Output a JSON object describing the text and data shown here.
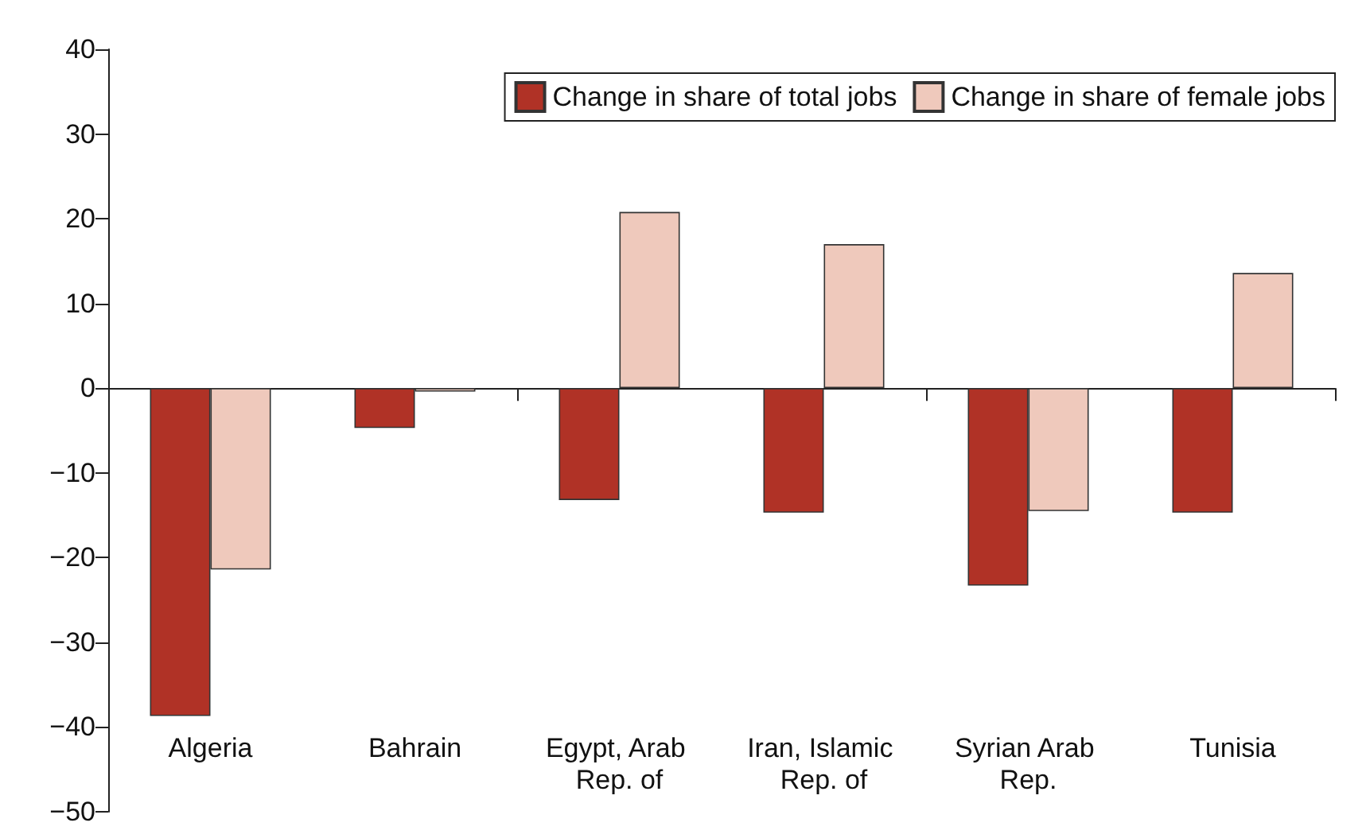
{
  "chart_data": {
    "type": "bar",
    "categories": [
      "Algeria",
      "Bahrain",
      "Egypt, Arab Rep. of",
      "Iran, Islamic Rep. of",
      "Syrian Arab Rep.",
      "Tunisia"
    ],
    "series": [
      {
        "name": "Change in share of total jobs",
        "color": "#b03226",
        "values": [
          -38.7,
          -4.7,
          -13.2,
          -14.7,
          -23.3,
          -14.7
        ]
      },
      {
        "name": "Change in share of female jobs",
        "color": "#efc9bc",
        "values": [
          -21.4,
          -0.4,
          20.8,
          17.0,
          -14.5,
          13.6
        ]
      }
    ],
    "ylim": [
      -50,
      40
    ],
    "yticks": [
      -50,
      -40,
      -30,
      -20,
      -10,
      0,
      10,
      20,
      30,
      40
    ],
    "legend": "top right"
  }
}
